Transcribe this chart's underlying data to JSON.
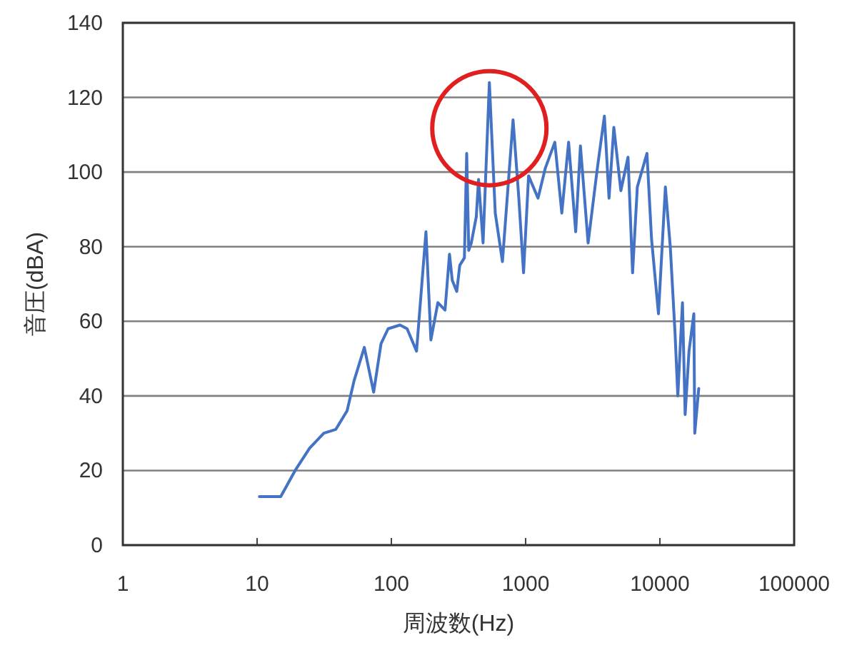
{
  "chart_data": {
    "type": "line",
    "xlabel": "周波数(Hz)",
    "ylabel": "音圧(dBA)",
    "log": "x",
    "xlim": [
      1,
      100000
    ],
    "xticks": [
      1,
      10,
      100,
      1000,
      10000,
      100000
    ],
    "ylim": [
      0,
      140
    ],
    "yticks": [
      0,
      20,
      40,
      60,
      80,
      100,
      120,
      140
    ],
    "grid": "y",
    "line_style": "solid",
    "series": [
      {
        "color": "#4472c4",
        "x": [
          10.4,
          15,
          19.2,
          24.6,
          31.4,
          38.5,
          46.8,
          52.7,
          62.9,
          73.8,
          83.8,
          94.6,
          116,
          131,
          154,
          181,
          197,
          222,
          251,
          271,
          284,
          307,
          323,
          350,
          364,
          377,
          394,
          429,
          446,
          482,
          537,
          594,
          672,
          722,
          806,
          890,
          965,
          1052,
          1237,
          1400,
          1650,
          1860,
          2090,
          2360,
          2560,
          2920,
          3420,
          3860,
          4180,
          4540,
          5120,
          5790,
          6260,
          6790,
          8010,
          8670,
          9760,
          10990,
          11950,
          12960,
          13600,
          14730,
          15420,
          16480,
          17900,
          18190,
          19470
        ],
        "values": [
          13,
          13,
          20,
          26,
          30,
          31,
          36,
          44,
          53,
          41,
          54,
          58,
          59,
          58,
          52,
          84,
          55,
          65,
          63,
          78,
          71,
          68,
          75,
          77,
          105,
          79,
          81,
          88,
          98,
          81,
          124,
          89,
          76,
          91,
          114,
          93,
          73,
          99,
          93,
          101,
          108,
          89,
          108,
          84,
          107,
          81,
          101,
          115,
          93,
          112,
          95,
          104,
          73,
          96,
          105,
          82,
          62,
          96,
          80,
          57,
          40,
          65,
          35,
          52,
          62,
          30,
          42
        ]
      }
    ]
  }
}
